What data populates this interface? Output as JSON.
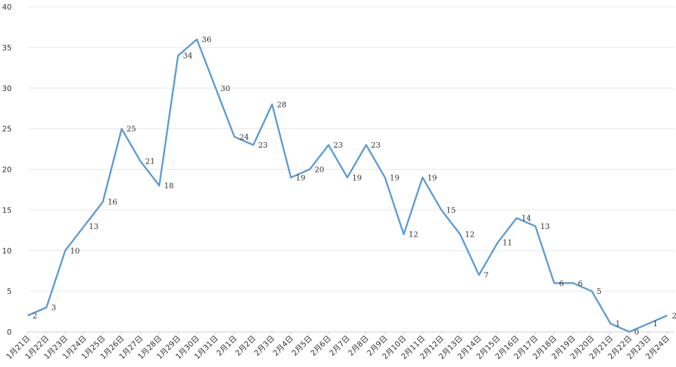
{
  "chart_data": {
    "type": "line",
    "title": "",
    "xlabel": "",
    "ylabel": "",
    "ylim": [
      0,
      40
    ],
    "yticks": [
      0,
      5,
      10,
      15,
      20,
      25,
      30,
      35,
      40
    ],
    "grid": true,
    "line_color": "#5b9bd5",
    "categories": [
      "1月21日",
      "1月22日",
      "1月23日",
      "1月24日",
      "1月25日",
      "1月26日",
      "1月27日",
      "1月28日",
      "1月29日",
      "1月30日",
      "1月31日",
      "2月1日",
      "2月2日",
      "2月3日",
      "2月4日",
      "2月5日",
      "2月6日",
      "2月7日",
      "2月8日",
      "2月9日",
      "2月10日",
      "2月11日",
      "2月12日",
      "2月13日",
      "2月14日",
      "2月15日",
      "2月16日",
      "2月17日",
      "2月18日",
      "2月19日",
      "2月20日",
      "2月21日",
      "2月22日",
      "2月23日",
      "2月24日"
    ],
    "series": [
      {
        "values": [
          2,
          3,
          10,
          13,
          16,
          25,
          21,
          18,
          34,
          36,
          30,
          24,
          23,
          28,
          19,
          20,
          23,
          19,
          23,
          19,
          12,
          19,
          15,
          12,
          7,
          11,
          14,
          13,
          6,
          6,
          5,
          1,
          0,
          1,
          2
        ]
      }
    ]
  }
}
